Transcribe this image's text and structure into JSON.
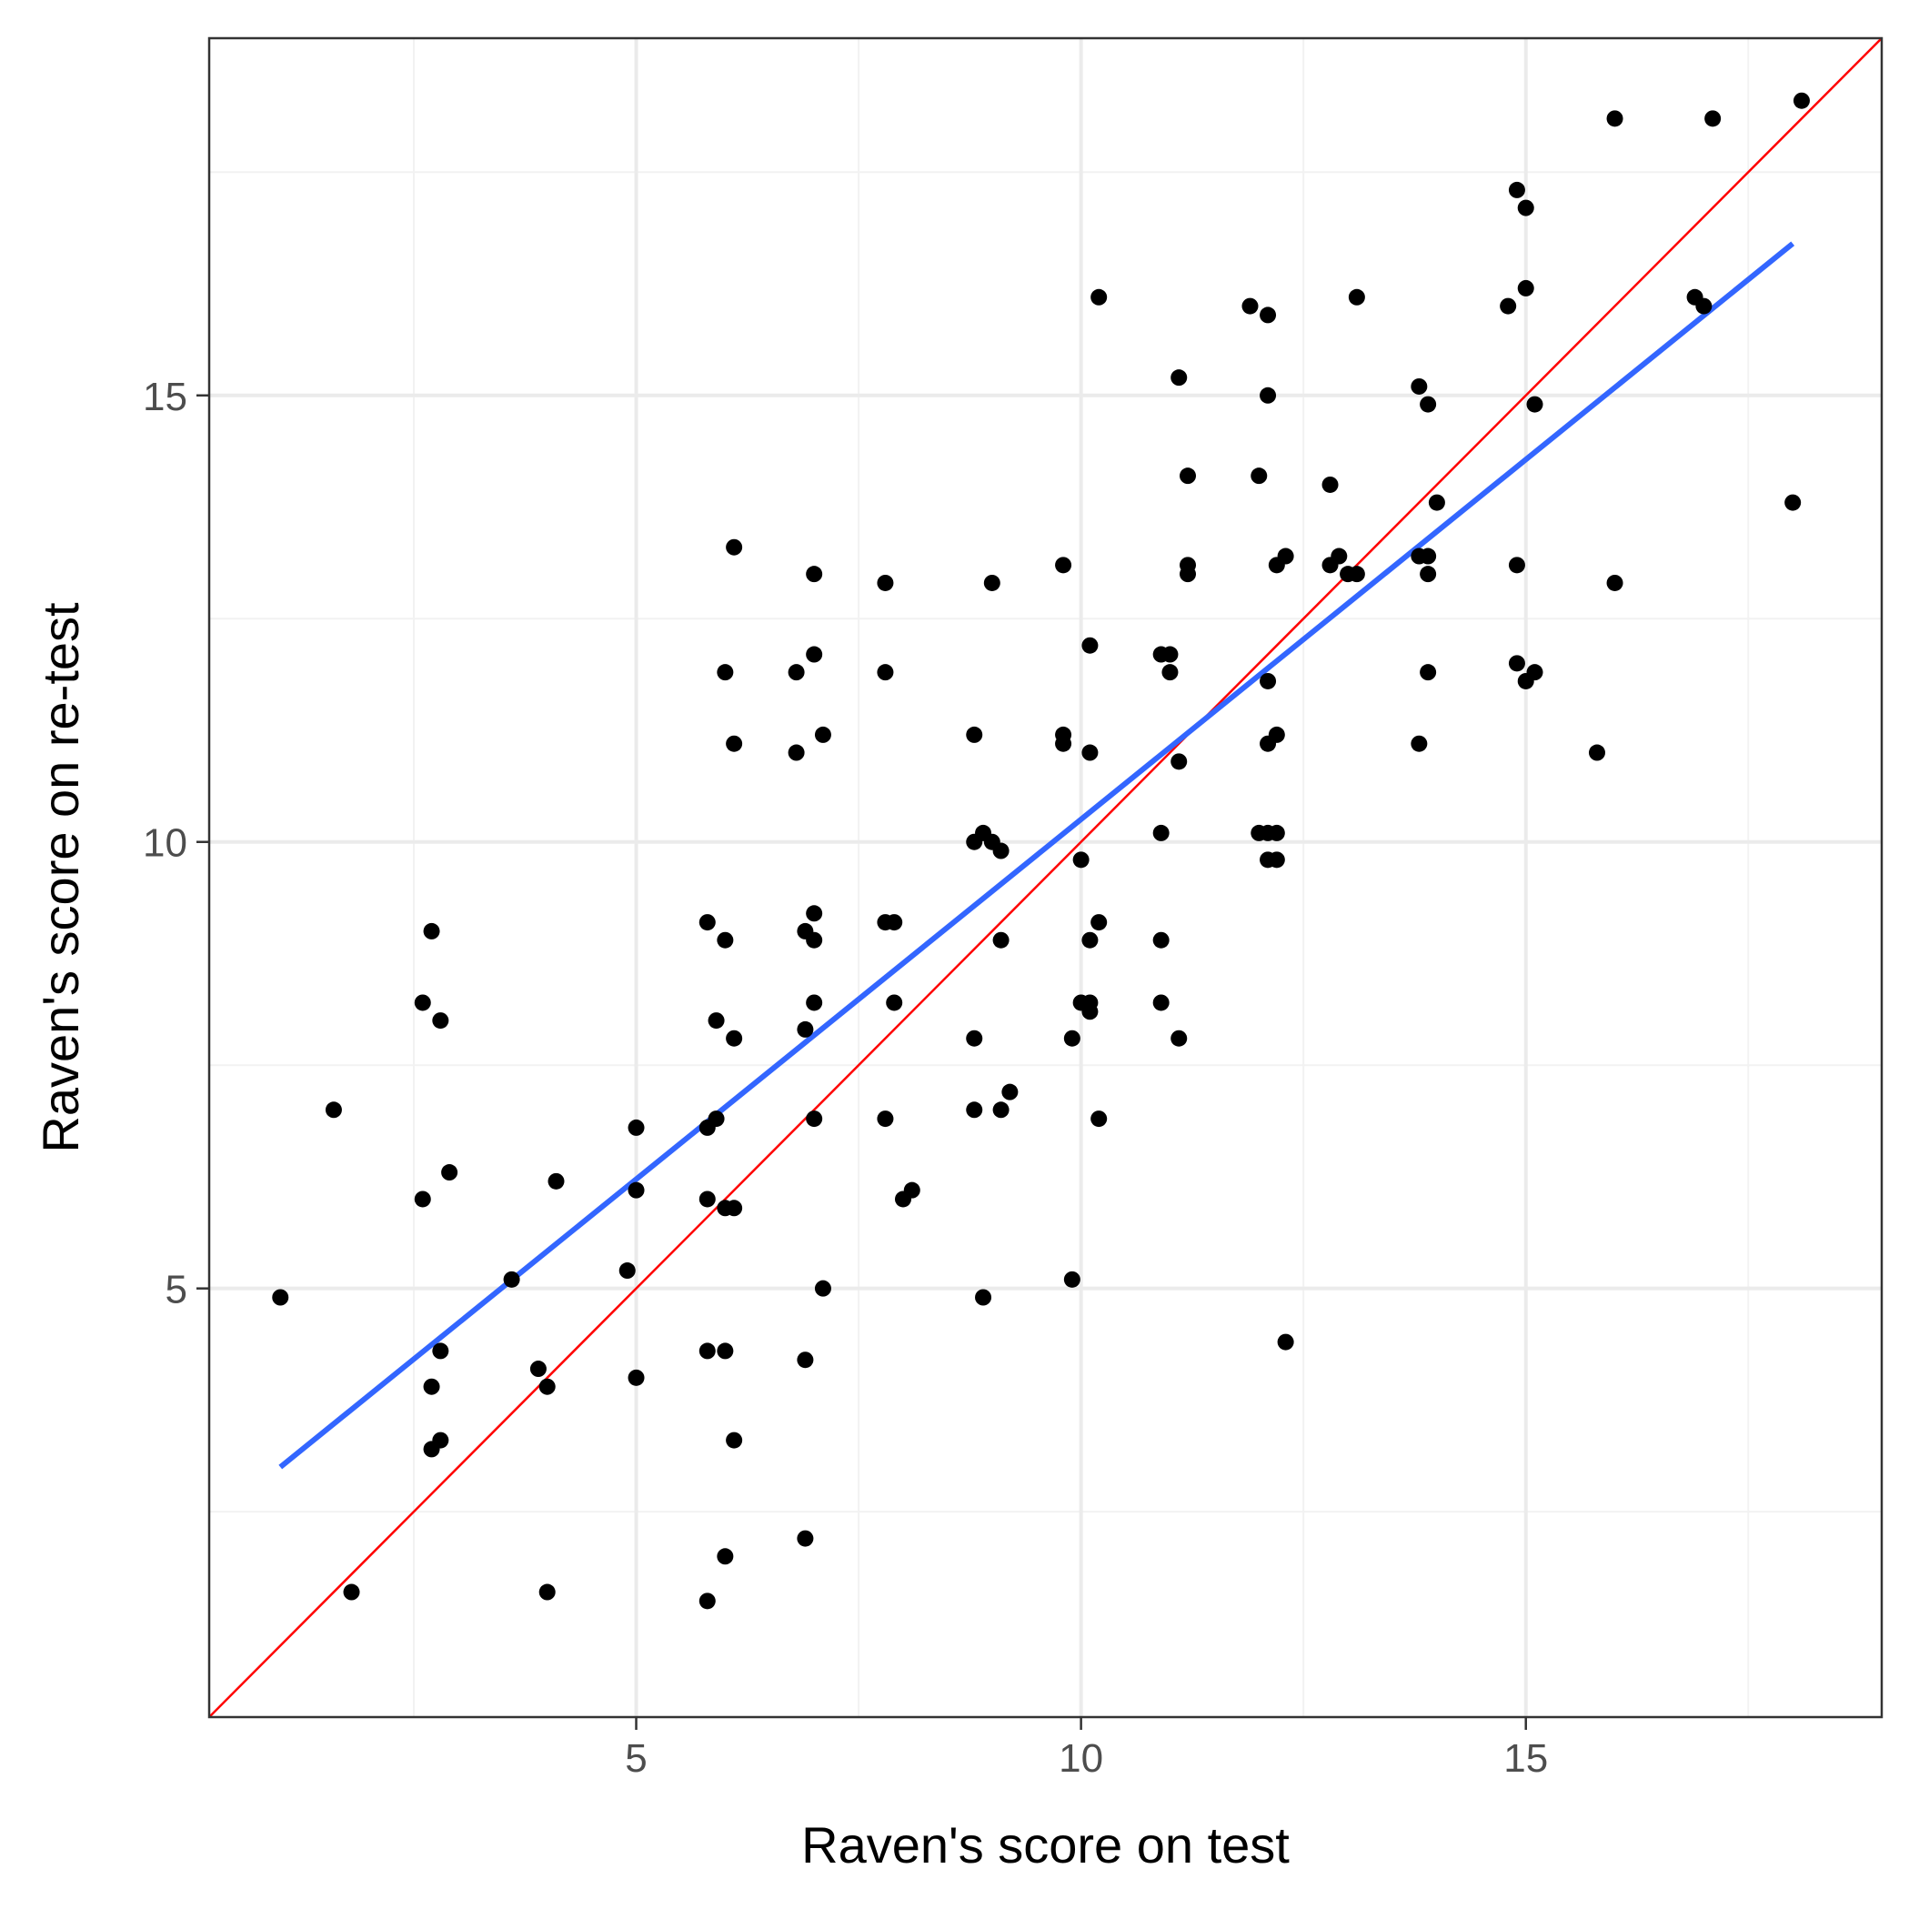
{
  "chart_data": {
    "type": "scatter",
    "xlabel": "Raven's score on test",
    "ylabel": "Raven's score on re-test",
    "xlim": [
      0.2,
      19.0
    ],
    "ylim": [
      0.2,
      19.0
    ],
    "x_ticks": [
      5,
      10,
      15
    ],
    "y_ticks": [
      5,
      10,
      15
    ],
    "x_tick_labels": [
      "5",
      "10",
      "15"
    ],
    "y_tick_labels": [
      "5",
      "10",
      "15"
    ],
    "grid": true,
    "theme": "bw",
    "colors": {
      "points": "#000000",
      "fit_line": "#3366ff",
      "identity_line": "#ff0000",
      "grid_major": "#ebebeb",
      "grid_minor": "#f2f2f2",
      "panel_border": "#333333",
      "tick_text": "#4d4d4d"
    },
    "fit_line": {
      "from": [
        1.0,
        3.0
      ],
      "to": [
        18.0,
        16.7
      ]
    },
    "identity_line": {
      "from": [
        0.2,
        0.2
      ],
      "to": [
        19.0,
        19.0
      ]
    },
    "points": [
      [
        1.0,
        4.9
      ],
      [
        1.6,
        7.0
      ],
      [
        1.8,
        1.6
      ],
      [
        2.7,
        9.0
      ],
      [
        2.6,
        8.2
      ],
      [
        2.8,
        8.0
      ],
      [
        2.6,
        6.0
      ],
      [
        2.9,
        6.3
      ],
      [
        2.8,
        4.3
      ],
      [
        2.7,
        3.9
      ],
      [
        2.8,
        3.3
      ],
      [
        2.7,
        3.2
      ],
      [
        3.6,
        5.1
      ],
      [
        3.9,
        4.1
      ],
      [
        4.0,
        3.9
      ],
      [
        4.1,
        6.2
      ],
      [
        4.0,
        1.6
      ],
      [
        4.9,
        5.2
      ],
      [
        5.0,
        6.8
      ],
      [
        5.0,
        6.1
      ],
      [
        5.0,
        4.0
      ],
      [
        5.8,
        9.1
      ],
      [
        5.9,
        8.0
      ],
      [
        6.0,
        8.9
      ],
      [
        6.1,
        7.8
      ],
      [
        5.8,
        6.8
      ],
      [
        5.9,
        6.9
      ],
      [
        5.8,
        6.0
      ],
      [
        6.0,
        5.9
      ],
      [
        6.1,
        5.9
      ],
      [
        5.8,
        4.3
      ],
      [
        6.0,
        4.3
      ],
      [
        6.1,
        3.3
      ],
      [
        6.0,
        2.0
      ],
      [
        5.8,
        1.5
      ],
      [
        6.1,
        11.1
      ],
      [
        6.0,
        11.9
      ],
      [
        6.1,
        13.3
      ],
      [
        6.8,
        11.9
      ],
      [
        6.8,
        11.0
      ],
      [
        7.0,
        12.1
      ],
      [
        7.1,
        11.2
      ],
      [
        7.0,
        13.0
      ],
      [
        6.9,
        9.0
      ],
      [
        7.0,
        9.2
      ],
      [
        7.0,
        8.9
      ],
      [
        7.0,
        8.2
      ],
      [
        6.9,
        7.9
      ],
      [
        7.0,
        6.9
      ],
      [
        7.1,
        5.0
      ],
      [
        6.9,
        4.2
      ],
      [
        6.9,
        2.2
      ],
      [
        7.8,
        12.9
      ],
      [
        7.8,
        11.9
      ],
      [
        7.8,
        9.1
      ],
      [
        7.9,
        9.1
      ],
      [
        7.9,
        8.2
      ],
      [
        7.8,
        6.9
      ],
      [
        8.0,
        6.0
      ],
      [
        8.1,
        6.1
      ],
      [
        8.8,
        11.2
      ],
      [
        8.8,
        10.0
      ],
      [
        8.9,
        10.1
      ],
      [
        9.0,
        10.0
      ],
      [
        9.1,
        9.9
      ],
      [
        9.1,
        8.9
      ],
      [
        8.8,
        7.8
      ],
      [
        8.8,
        7.0
      ],
      [
        9.1,
        7.0
      ],
      [
        9.2,
        7.2
      ],
      [
        8.9,
        4.9
      ],
      [
        9.0,
        12.9
      ],
      [
        9.8,
        13.1
      ],
      [
        9.8,
        11.2
      ],
      [
        9.8,
        11.1
      ],
      [
        10.1,
        11.0
      ],
      [
        10.1,
        12.2
      ],
      [
        10.0,
        9.8
      ],
      [
        10.1,
        8.9
      ],
      [
        10.2,
        9.1
      ],
      [
        9.9,
        7.8
      ],
      [
        10.0,
        8.2
      ],
      [
        10.1,
        8.2
      ],
      [
        10.1,
        8.1
      ],
      [
        10.2,
        6.9
      ],
      [
        9.9,
        5.1
      ],
      [
        10.2,
        16.1
      ],
      [
        10.9,
        12.1
      ],
      [
        11.0,
        12.1
      ],
      [
        11.0,
        11.9
      ],
      [
        11.1,
        10.9
      ],
      [
        10.9,
        10.1
      ],
      [
        10.9,
        8.9
      ],
      [
        10.9,
        8.2
      ],
      [
        11.1,
        7.8
      ],
      [
        11.1,
        15.2
      ],
      [
        11.2,
        14.1
      ],
      [
        11.2,
        13.1
      ],
      [
        11.2,
        13.0
      ],
      [
        11.9,
        16.0
      ],
      [
        12.1,
        15.9
      ],
      [
        12.1,
        15.0
      ],
      [
        12.0,
        14.1
      ],
      [
        12.1,
        11.8
      ],
      [
        12.1,
        11.1
      ],
      [
        12.2,
        11.2
      ],
      [
        12.1,
        10.1
      ],
      [
        12.0,
        10.1
      ],
      [
        12.2,
        10.1
      ],
      [
        12.1,
        9.8
      ],
      [
        12.2,
        9.8
      ],
      [
        12.2,
        13.1
      ],
      [
        12.3,
        13.2
      ],
      [
        12.3,
        4.4
      ],
      [
        12.8,
        14.0
      ],
      [
        12.8,
        13.1
      ],
      [
        12.9,
        13.2
      ],
      [
        13.0,
        13.0
      ],
      [
        13.1,
        13.0
      ],
      [
        13.1,
        16.1
      ],
      [
        13.8,
        15.1
      ],
      [
        13.9,
        14.9
      ],
      [
        13.9,
        13.2
      ],
      [
        13.8,
        13.2
      ],
      [
        13.9,
        13.0
      ],
      [
        14.0,
        13.8
      ],
      [
        13.9,
        11.9
      ],
      [
        13.8,
        11.1
      ],
      [
        14.8,
        16.0
      ],
      [
        14.9,
        17.3
      ],
      [
        15.0,
        17.1
      ],
      [
        15.0,
        16.2
      ],
      [
        15.1,
        14.9
      ],
      [
        14.9,
        13.1
      ],
      [
        14.9,
        12.0
      ],
      [
        15.0,
        11.8
      ],
      [
        15.1,
        11.9
      ],
      [
        15.8,
        11.0
      ],
      [
        16.0,
        12.9
      ],
      [
        16.0,
        18.1
      ],
      [
        16.9,
        16.1
      ],
      [
        17.0,
        16.0
      ],
      [
        17.1,
        18.1
      ],
      [
        18.1,
        18.3
      ],
      [
        18.0,
        13.8
      ]
    ]
  }
}
